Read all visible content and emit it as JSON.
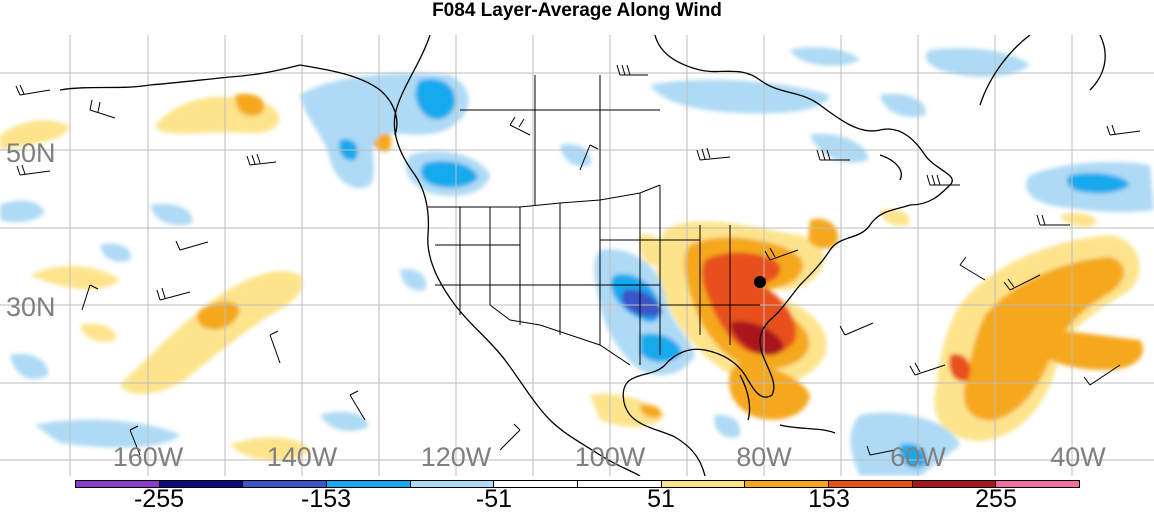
{
  "title": "F084 Layer-Average Along Wind",
  "lat_labels": [
    {
      "text": "50N",
      "lat": 50
    },
    {
      "text": "30N",
      "lat": 30
    }
  ],
  "lon_labels": [
    {
      "text": "160W",
      "lon": -160
    },
    {
      "text": "140W",
      "lon": -140
    },
    {
      "text": "120W",
      "lon": -120
    },
    {
      "text": "100W",
      "lon": -100
    },
    {
      "text": "80W",
      "lon": -80
    },
    {
      "text": "60W",
      "lon": -60
    },
    {
      "text": "40W",
      "lon": -40
    }
  ],
  "colorbar": {
    "colors": [
      "#8a3cc8",
      "#0a0a7a",
      "#3a55c8",
      "#19a9ee",
      "#aedaf5",
      "#ffffff",
      "#ffffff",
      "#fde48c",
      "#f5a81e",
      "#e8501a",
      "#a8181a",
      "#ef6fa0"
    ],
    "labels": [
      "-255",
      "-153",
      "-51",
      "51",
      "153",
      "255"
    ]
  },
  "station": {
    "name": "",
    "lon": -80,
    "lat": 33
  }
}
